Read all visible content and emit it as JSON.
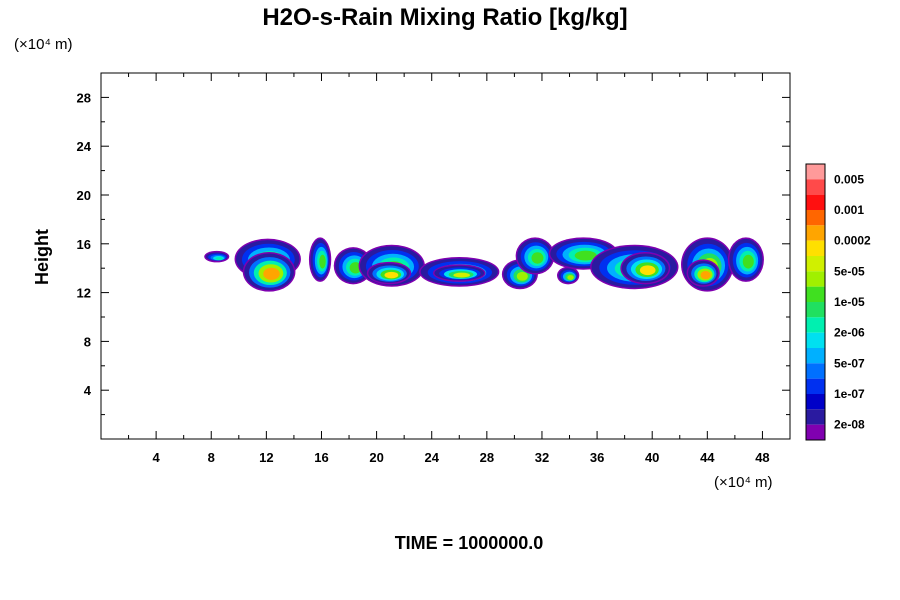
{
  "chart_data": {
    "type": "heatmap",
    "title": "H2O-s-Rain Mixing Ratio [kg/kg]",
    "ylabel": "Height",
    "x_unit": "(×10⁴ m)",
    "y_unit": "(×10⁴ m)",
    "xlim": [
      0,
      50
    ],
    "ylim": [
      0,
      30
    ],
    "x_ticks": [
      "4",
      "8",
      "12",
      "16",
      "20",
      "24",
      "28",
      "32",
      "36",
      "40",
      "44",
      "48"
    ],
    "y_ticks": [
      "4",
      "8",
      "12",
      "16",
      "20",
      "24",
      "28"
    ],
    "colorbar": {
      "labels": [
        "0.005",
        "0.001",
        "0.0002",
        "5e-05",
        "1e-05",
        "2e-06",
        "5e-07",
        "1e-07",
        "2e-08"
      ],
      "colors": [
        "#ff9a9a",
        "#ff4a4a",
        "#ff1010",
        "#ff6600",
        "#ffa500",
        "#ffe000",
        "#d0f000",
        "#a0f000",
        "#40e020",
        "#20e060",
        "#00f0b0",
        "#00e0f0",
        "#00b0ff",
        "#0070ff",
        "#0030f0",
        "#0000c8",
        "#2a1aa0",
        "#8000b0"
      ]
    },
    "cells": [
      {
        "x": [
          7.6,
          9.2
        ],
        "y": [
          14.6,
          15.3
        ],
        "level": 0.4
      },
      {
        "x": [
          9.8,
          14.4
        ],
        "y": [
          13.2,
          16.3
        ],
        "level": 0.5
      },
      {
        "x": [
          10.4,
          14.0
        ],
        "y": [
          12.2,
          15.2
        ],
        "level": 0.72
      },
      {
        "x": [
          15.2,
          16.6
        ],
        "y": [
          13.0,
          16.4
        ],
        "level": 0.5
      },
      {
        "x": [
          17.0,
          19.6
        ],
        "y": [
          12.8,
          15.6
        ],
        "level": 0.5
      },
      {
        "x": [
          18.8,
          23.4
        ],
        "y": [
          12.6,
          15.8
        ],
        "level": 0.52
      },
      {
        "x": [
          19.4,
          22.4
        ],
        "y": [
          12.8,
          14.4
        ],
        "level": 0.66
      },
      {
        "x": [
          23.2,
          28.8
        ],
        "y": [
          12.6,
          14.8
        ],
        "level": 0.52
      },
      {
        "x": [
          24.2,
          27.8
        ],
        "y": [
          13.0,
          14.2
        ],
        "level": 0.6
      },
      {
        "x": [
          29.2,
          31.6
        ],
        "y": [
          12.4,
          14.6
        ],
        "level": 0.56
      },
      {
        "x": [
          30.2,
          32.8
        ],
        "y": [
          13.6,
          16.4
        ],
        "level": 0.5
      },
      {
        "x": [
          33.2,
          34.6
        ],
        "y": [
          12.8,
          14.0
        ],
        "level": 0.55
      },
      {
        "x": [
          32.6,
          37.4
        ],
        "y": [
          14.0,
          16.4
        ],
        "level": 0.5
      },
      {
        "x": [
          35.6,
          41.8
        ],
        "y": [
          12.4,
          15.8
        ],
        "level": 0.52
      },
      {
        "x": [
          37.8,
          41.2
        ],
        "y": [
          12.8,
          15.2
        ],
        "level": 0.68
      },
      {
        "x": [
          42.2,
          45.8
        ],
        "y": [
          12.2,
          16.4
        ],
        "level": 0.55
      },
      {
        "x": [
          42.6,
          44.8
        ],
        "y": [
          12.6,
          14.6
        ],
        "level": 0.78
      },
      {
        "x": [
          45.6,
          48.0
        ],
        "y": [
          13.0,
          16.4
        ],
        "level": 0.5
      }
    ]
  },
  "footer": "TIME = 1000000.0"
}
